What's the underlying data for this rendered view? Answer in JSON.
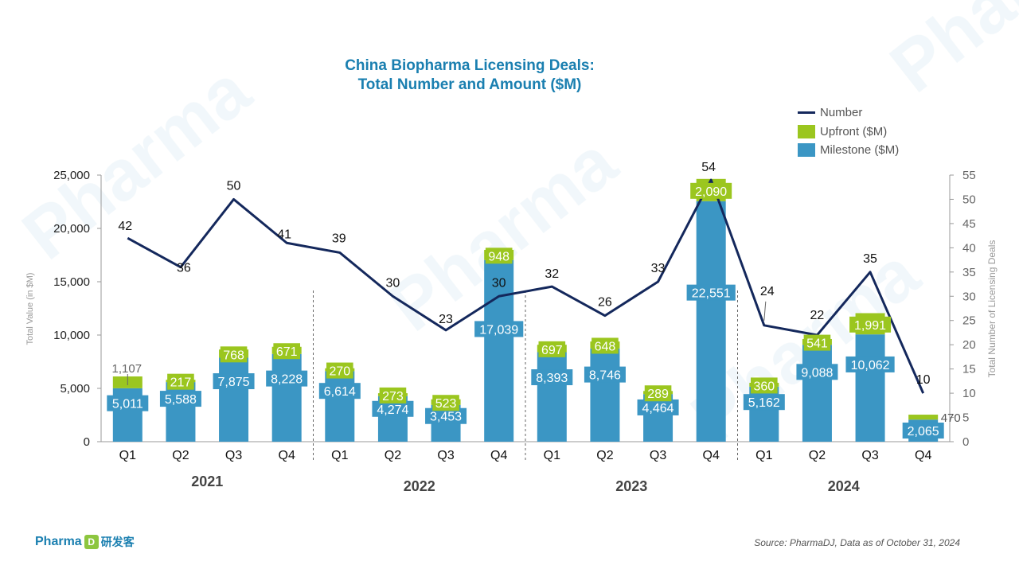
{
  "brand": {
    "name": "Pharma",
    "mark": "D",
    "name_cn": "研发客"
  },
  "source": "Source: PharmaDJ, Data as of October 31, 2024",
  "legend": {
    "number": "Number",
    "upfront": "Upfront ($M)",
    "milestone": "Milestone ($M)"
  },
  "colors": {
    "milestone": "#3b96c4",
    "upfront": "#9bc61f",
    "line": "#14285c",
    "title": "#1a7fb0"
  },
  "chart_data": {
    "type": "bar",
    "stacked": true,
    "combo": "bar + line (secondary axis)",
    "title_lines": [
      "China Biopharma Licensing Deals:",
      "Total Number and Amount ($M)"
    ],
    "ylabel": "Total Value (in $M)",
    "y2label": "Total Number of Licensing Deals",
    "ylim": [
      0,
      25000
    ],
    "y_ticks": [
      "0",
      "5,000",
      "10,000",
      "15,000",
      "20,000",
      "25,000"
    ],
    "y2lim": [
      0,
      55
    ],
    "y2_ticks": [
      "0",
      "5",
      "10",
      "15",
      "20",
      "25",
      "30",
      "35",
      "40",
      "45",
      "50",
      "55"
    ],
    "grid": false,
    "legend_position": "top-right",
    "categories": [
      "Q1",
      "Q2",
      "Q3",
      "Q4",
      "Q1",
      "Q2",
      "Q3",
      "Q4",
      "Q1",
      "Q2",
      "Q3",
      "Q4",
      "Q1",
      "Q2",
      "Q3",
      "Q4"
    ],
    "groups": [
      {
        "label": "2021",
        "categories": [
          0,
          3
        ]
      },
      {
        "label": "2022",
        "categories": [
          4,
          7
        ]
      },
      {
        "label": "2023",
        "categories": [
          8,
          11
        ]
      },
      {
        "label": "2024",
        "categories": [
          12,
          15
        ]
      }
    ],
    "series": [
      {
        "name": "Milestone ($M)",
        "kind": "bar",
        "values": [
          5011,
          5588,
          7875,
          8228,
          6614,
          4274,
          3453,
          17039,
          8393,
          8746,
          4464,
          22551,
          5162,
          9088,
          10062,
          2065
        ],
        "labels": [
          "5,011",
          "5,588",
          "7,875",
          "8,228",
          "6,614",
          "4,274",
          "3,453",
          "17,039",
          "8,393",
          "8,746",
          "4,464",
          "22,551",
          "5,162",
          "9,088",
          "10,062",
          "2,065"
        ]
      },
      {
        "name": "Upfront ($M)",
        "kind": "bar",
        "values": [
          1107,
          217,
          768,
          671,
          270,
          273,
          523,
          948,
          697,
          648,
          289,
          2090,
          360,
          541,
          1991,
          470
        ],
        "labels": [
          "1,107",
          "217",
          "768",
          "671",
          "270",
          "273",
          "523",
          "948",
          "697",
          "648",
          "289",
          "2,090",
          "360",
          "541",
          "1,991",
          "470"
        ]
      },
      {
        "name": "Number",
        "kind": "line",
        "axis": "secondary",
        "values": [
          42,
          36,
          50,
          41,
          39,
          30,
          23,
          30,
          32,
          26,
          33,
          54,
          24,
          22,
          35,
          10
        ],
        "labels": [
          "42",
          "36",
          "50",
          "41",
          "39",
          "30",
          "23",
          "30",
          "32",
          "26",
          "33",
          "54",
          "24",
          "22",
          "35",
          "10"
        ]
      }
    ]
  }
}
